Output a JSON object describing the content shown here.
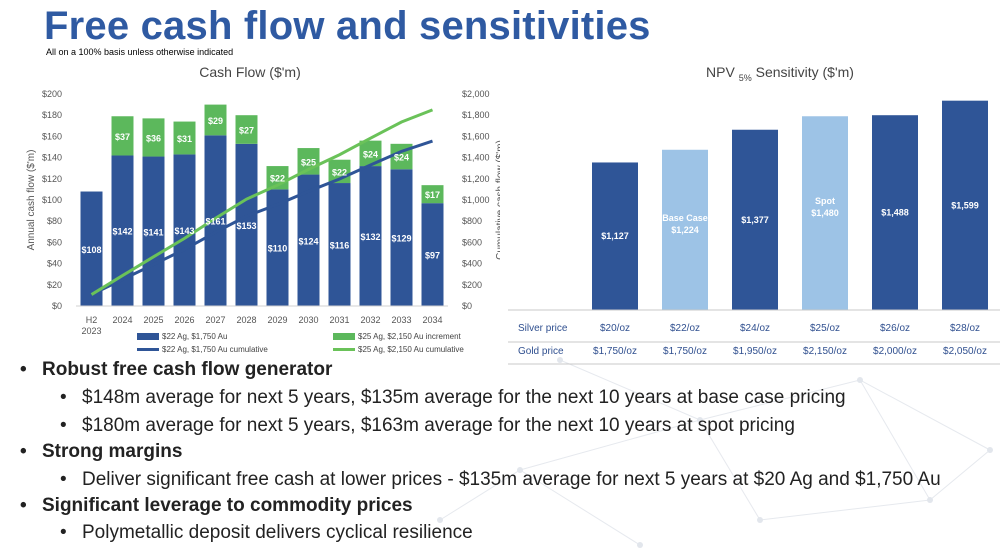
{
  "page": {
    "title": "Free cash flow and sensitivities",
    "subtitle": "All on a 100% basis unless otherwise indicated"
  },
  "chart_data": [
    {
      "type": "bar",
      "title": "Cash Flow ($'m)",
      "ylabel": "Annual cash flow ($'m)",
      "y2label": "Cumulative cash flow ($'m)",
      "ylim": [
        0,
        200
      ],
      "y2lim": [
        0,
        2000
      ],
      "y_ticks": [
        "$0",
        "$20",
        "$40",
        "$60",
        "$80",
        "$100",
        "$120",
        "$140",
        "$160",
        "$180",
        "$200"
      ],
      "y2_ticks": [
        "$0",
        "$200",
        "$400",
        "$600",
        "$800",
        "$1,000",
        "$1,200",
        "$1,400",
        "$1,600",
        "$1,800",
        "$2,000"
      ],
      "categories": [
        "H2 2023",
        "2024",
        "2025",
        "2026",
        "2027",
        "2028",
        "2029",
        "2030",
        "2031",
        "2032",
        "2033",
        "2034"
      ],
      "series": [
        {
          "name": "$22 Ag, $1,750 Au",
          "kind": "bar",
          "color": "#2f5597",
          "values": [
            108,
            142,
            141,
            143,
            161,
            153,
            110,
            124,
            116,
            132,
            129,
            97
          ],
          "labels": [
            "$108",
            "$142",
            "$141",
            "$143",
            "$161",
            "$153",
            "$110",
            "$124",
            "$116",
            "$132",
            "$129",
            "$97"
          ]
        },
        {
          "name": "$25 Ag, $2,150 Au increment",
          "kind": "bar-stacked",
          "color": "#5cb85c",
          "values": [
            0,
            37,
            36,
            31,
            29,
            27,
            22,
            25,
            22,
            24,
            24,
            17
          ],
          "labels": [
            "",
            "$37",
            "$36",
            "$31",
            "$29",
            "$27",
            "$22",
            "$25",
            "$22",
            "$24",
            "$24",
            "$17"
          ]
        },
        {
          "name": "$22 Ag, $1,750 Au cumulative",
          "kind": "line",
          "axis": "y2",
          "color": "#2f5597",
          "values": [
            108,
            250,
            391,
            534,
            695,
            848,
            958,
            1082,
            1198,
            1330,
            1459,
            1556
          ]
        },
        {
          "name": "$25 Ag, $2,150 Au cumulative",
          "kind": "line",
          "axis": "y2",
          "color": "#6ac259",
          "values": [
            108,
            287,
            464,
            638,
            828,
            1008,
            1140,
            1289,
            1427,
            1583,
            1736,
            1850
          ]
        }
      ],
      "legend_position": "bottom"
    },
    {
      "type": "bar",
      "title": "NPV",
      "title_subscript": "5%",
      "title_suffix": "Sensitivity ($'m)",
      "categories": [
        "$20/oz",
        "$22/oz",
        "$24/oz",
        "$25/oz",
        "$26/oz",
        "$28/oz"
      ],
      "values": [
        1127,
        1224,
        1377,
        1480,
        1488,
        1599
      ],
      "labels": [
        "$1,127",
        "$1,224",
        "$1,377",
        "$1,480",
        "$1,488",
        "$1,599"
      ],
      "bar_tags": [
        "",
        "Base Case",
        "",
        "Spot",
        "",
        ""
      ],
      "colors": [
        "#2f5597",
        "#9dc3e6",
        "#2f5597",
        "#9dc3e6",
        "#2f5597",
        "#2f5597"
      ],
      "table": {
        "rows": [
          {
            "label": "Silver price",
            "values": [
              "$20/oz",
              "$22/oz",
              "$24/oz",
              "$25/oz",
              "$26/oz",
              "$28/oz"
            ]
          },
          {
            "label": "Gold price",
            "values": [
              "$1,750/oz",
              "$1,750/oz",
              "$1,950/oz",
              "$2,150/oz",
              "$2,000/oz",
              "$2,050/oz"
            ]
          }
        ]
      }
    }
  ],
  "bullets": [
    {
      "level": 1,
      "text": "Robust free cash flow generator"
    },
    {
      "level": 2,
      "text": "$148m average for next 5 years, $135m average for the next 10 years at base case pricing"
    },
    {
      "level": 2,
      "text": "$180m average for next 5 years, $163m average for the next 10 years at spot pricing"
    },
    {
      "level": 1,
      "text": "Strong margins"
    },
    {
      "level": 2,
      "text": "Deliver significant free cash at lower prices - $135m average for next 5 years at $20 Ag and $1,750 Au"
    },
    {
      "level": 1,
      "text": "Significant leverage to commodity prices"
    },
    {
      "level": 2,
      "text": "Polymetallic deposit delivers cyclical resilience"
    }
  ],
  "bullet_symbol": "•"
}
